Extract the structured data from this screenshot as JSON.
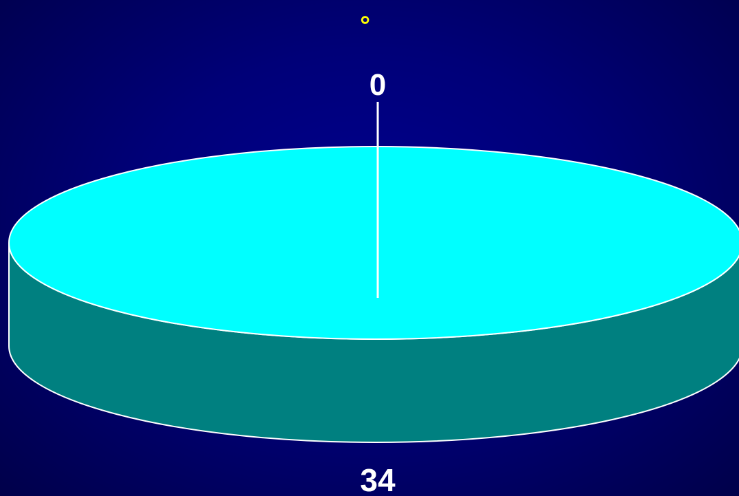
{
  "chart_data": {
    "type": "pie",
    "style": "3d",
    "title": "。",
    "slices": [
      {
        "label": "0",
        "value": 0,
        "color": "#00FFFF",
        "side_color": "#008080"
      },
      {
        "label": "34",
        "value": 34,
        "color": "#00FFFF",
        "side_color": "#008080"
      }
    ],
    "title_color": "#FFFF00",
    "label_color": "#FFFFFF",
    "background_color": "#000080"
  }
}
